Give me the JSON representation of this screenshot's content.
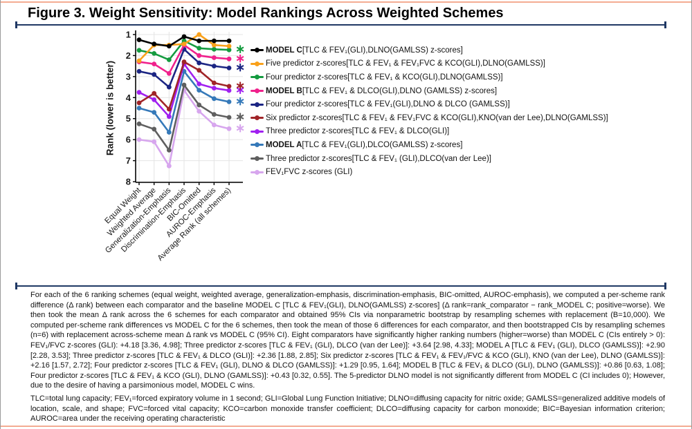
{
  "header": {
    "title": "Figure 3. Weight Sensitivity: Model Rankings Across Weighted Schemes"
  },
  "chart_data": {
    "type": "line",
    "title": "",
    "xlabel": "",
    "ylabel": "Rank (lower is better)",
    "y_inverted": true,
    "ylim": [
      1,
      8
    ],
    "y_ticks": [
      1,
      2,
      3,
      4,
      5,
      6,
      7,
      8
    ],
    "grid": true,
    "legend_position": "right",
    "significance_note": "asterisk = significantly worse rank vs MODEL C",
    "categories": [
      "Equal Weight",
      "Weighted Average",
      "Generalization-Emphasis",
      "Discrimination-Emphasis",
      "BIC-Omitted",
      "AUROC-Emphasis",
      "Average Rank (all schemes)"
    ],
    "series": [
      {
        "label_bold": "MODEL C ",
        "label": "[TLC & FEV₁(GLI),DLNO(GAMLSS) z-scores]",
        "color": "#000000",
        "asterisk": false,
        "values": [
          1.25,
          1.45,
          1.55,
          1.1,
          1.3,
          1.3,
          1.3
        ]
      },
      {
        "label_bold": "",
        "label": "Five predictor z-scores[TLC & FEV₁ & FEV₁FVC & KCO(GLI),DLNO(GAMLSS)]",
        "color": "#f9a11b",
        "asterisk": false,
        "values": [
          2.25,
          1.5,
          1.5,
          1.45,
          1.0,
          1.5,
          1.55
        ]
      },
      {
        "label_bold": "",
        "label": "Four predictor z-scores[TLC & FEV₁ & KCO(GLI),DLNO(GAMLSS)]",
        "color": "#149b3f",
        "asterisk": true,
        "values": [
          1.75,
          1.9,
          2.2,
          1.3,
          1.65,
          1.7,
          1.73
        ]
      },
      {
        "label_bold": "MODEL B ",
        "label": "[TLC & FEV₁ & DLCO(GLI),DLNO (GAMLSS) z-scores]",
        "color": "#f0218c",
        "asterisk": true,
        "values": [
          2.3,
          2.4,
          2.85,
          1.5,
          2.0,
          2.1,
          2.16
        ]
      },
      {
        "label_bold": "",
        "label": "Four predictor z-scores[TLC & FEV₁(GLI),DLNO & DLCO (GAMLSS)]",
        "color": "#1b2583",
        "asterisk": true,
        "values": [
          2.75,
          2.9,
          3.5,
          1.7,
          2.35,
          2.5,
          2.59
        ]
      },
      {
        "label_bold": "",
        "label": "Six predictor z-scores[TLC & FEV₁ & FEV₁FVC & KCO(GLI),KNO(van der Lee),DLNO(GAMLSS)]",
        "color": "#a02428",
        "asterisk": true,
        "values": [
          4.25,
          3.8,
          4.55,
          2.3,
          2.7,
          3.3,
          3.46
        ]
      },
      {
        "label_bold": "",
        "label": "Three predictor z-scores[TLC & FEV₁ & DLCO(GLI)]",
        "color": "#a020f0",
        "asterisk": true,
        "values": [
          3.75,
          4.1,
          4.9,
          2.4,
          3.35,
          3.55,
          3.66
        ]
      },
      {
        "label_bold": "MODEL A ",
        "label": "[TLC & FEV₁(GLI),DLCO(GAMLSS) z-scores]",
        "color": "#3579b9",
        "asterisk": true,
        "values": [
          4.5,
          4.7,
          5.65,
          2.75,
          3.65,
          4.05,
          4.2
        ]
      },
      {
        "label_bold": "",
        "label": "Three predictor z-scores[TLC & FEV₁ (GLI),DLCO(van der Lee)]",
        "color": "#5f5f5f",
        "asterisk": true,
        "values": [
          5.25,
          5.5,
          6.5,
          3.4,
          4.35,
          4.8,
          4.94
        ]
      },
      {
        "label_bold": "",
        "label": "FEV₁FVC z-scores (GLI)",
        "color": "#d7a6ee",
        "asterisk": true,
        "values": [
          6.0,
          6.1,
          7.25,
          3.65,
          4.65,
          5.3,
          5.48
        ]
      }
    ]
  },
  "caption": {
    "methods": "For each of the 6 ranking schemes (equal weight, weighted average, generalization-emphasis, discrimination-emphasis, BIC-omitted, AUROC-emphasis), we computed a per-scheme rank difference (Δ rank) between each comparator and the baseline MODEL C [TLC & FEV₁(GLI), DLNO(GAMLSS) z-scores] (Δ rank=rank_comparator − rank_MODEL C; positive=worse). We then took the mean Δ rank across the 6 schemes for each comparator and obtained 95% CIs via nonparametric bootstrap by resampling schemes with replacement (B=10,000). We computed per-scheme rank differences vs MODEL C for the 6 schemes, then took the mean of those 6 differences for each comparator, and then bootstrapped CIs by resampling schemes (n=6) with replacement across-scheme mean Δ rank vs MODEL C (95% CI). Eight comparators have significantly higher ranking numbers (higher=worse) than MODEL C (CIs entirely > 0): FEV₁/FVC z-scores (GLI): +4.18 [3.36, 4.98]; Three predictor z-scores [TLC & FEV₁ (GLI), DLCO (van der Lee)]: +3.64 [2.98, 4.33]; MODEL A [TLC & FEV₁ (GLI), DLCO (GAMLSS)]: +2.90 [2.28, 3.53]; Three predictor z-scores [TLC & FEV₁ & DLCO (GLI)]: +2.36 [1.88, 2.85]; Six predictor z-scores [TLC & FEV₁ & FEV₁/FVC & KCO (GLI), KNO (van der Lee), DLNO (GAMLSS)]: +2.16 [1.57, 2.72]; Four predictor z-scores [TLC & FEV₁ (GLI), DLNO & DLCO (GAMLSS)]: +1.29 [0.95, 1.64]; MODEL B [TLC & FEV₁ & DLCO (GLI), DLNO (GAMLSS)]: +0.86 [0.63, 1.08]; Four predictor z-scores [TLC & FEV₁ & KCO (GLI), DLNO (GAMLSS)]: +0.43 [0.32, 0.55]. The 5-predictor DLNO model is not significantly different from MODEL C (CI includes 0); However, due to the desire of having a parsimonious model, MODEL C wins.",
    "abbreviations": "TLC=total lung capacity; FEV₁=forced expiratory volume in 1 second; GLI=Global Lung Function Initiative; DLNO=diffusing capacity for nitric oxide; GAMLSS=generalized additive models of location, scale, and shape; FVC=forced vital capacity; KCO=carbon monoxide transfer coefficient; DLCO=diffusing capacity for carbon monoxide; BIC=Bayesian information criterion; AUROC=area under the receiving operating characteristic"
  }
}
